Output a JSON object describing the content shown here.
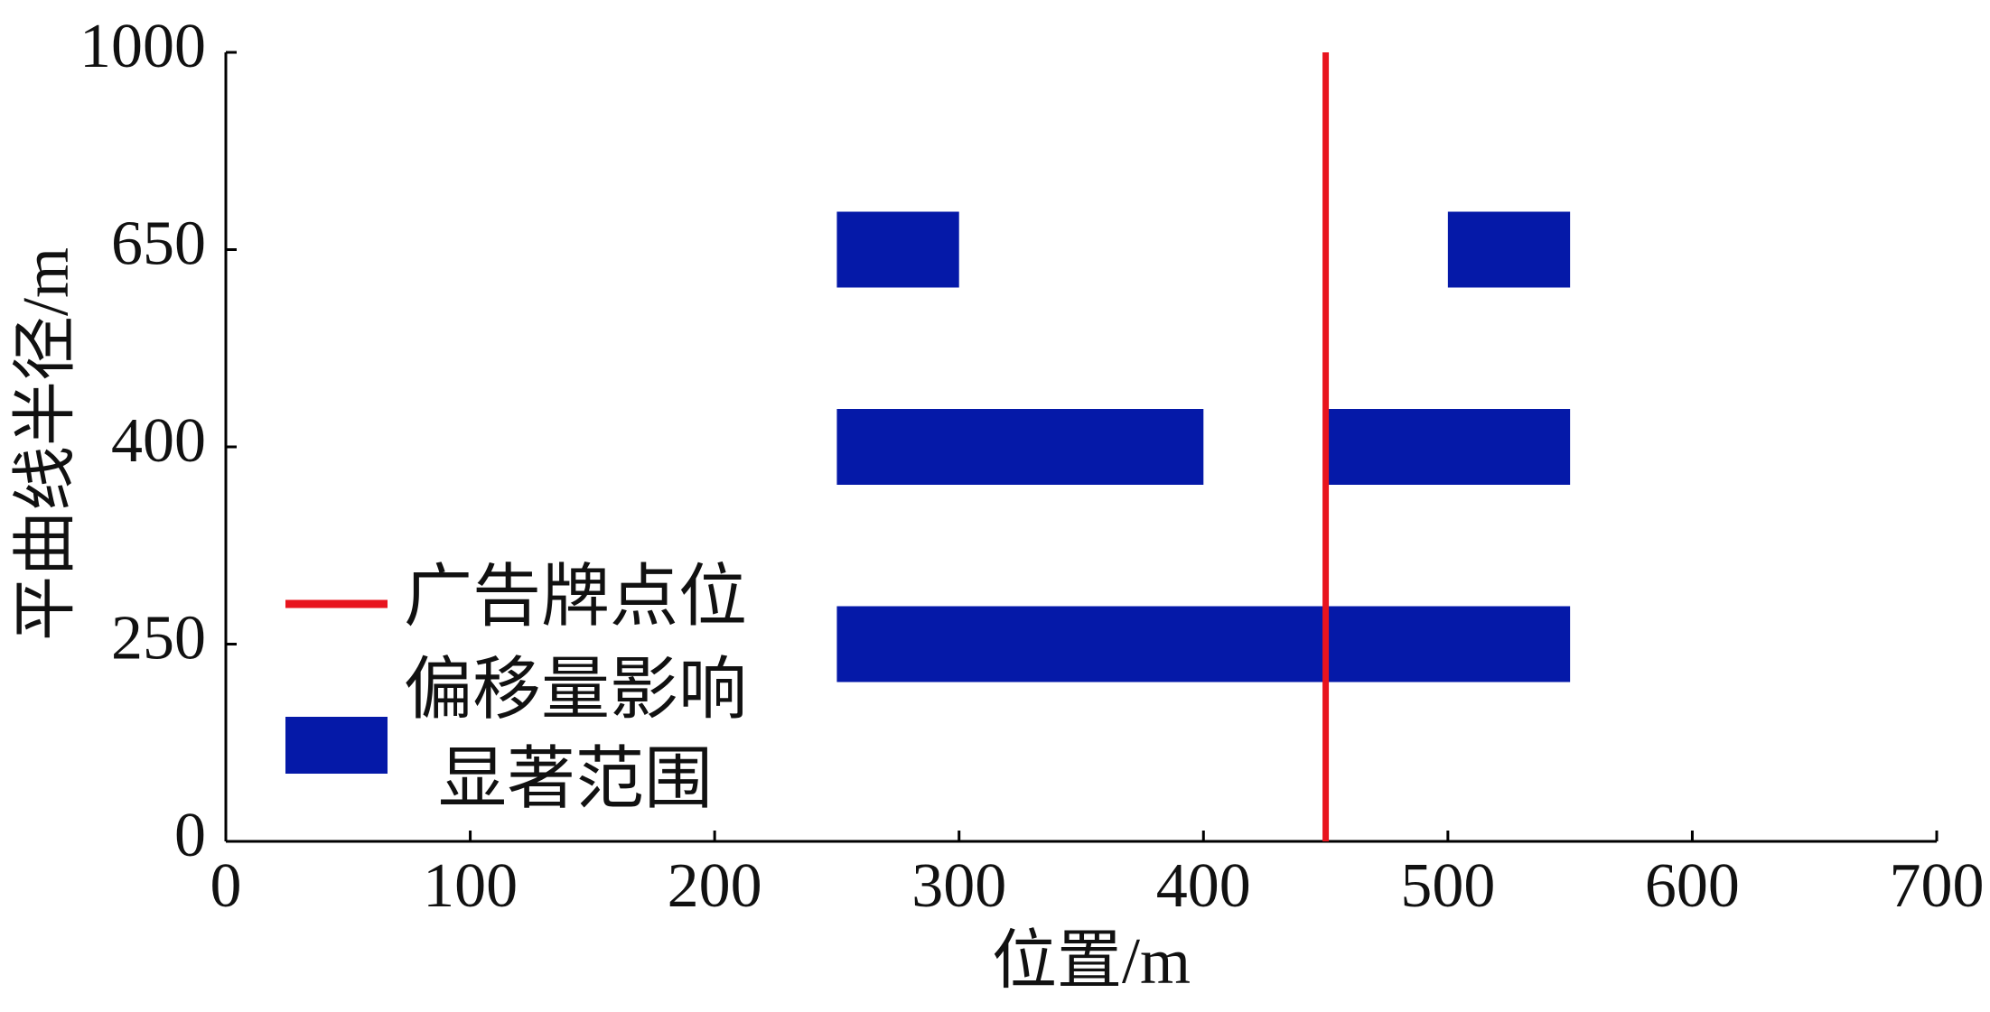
{
  "chart_data": {
    "type": "range-bar",
    "xlabel": "位置/m",
    "ylabel": "平曲线半径/m",
    "xlim": [
      0,
      700
    ],
    "xticks": [
      0,
      100,
      200,
      300,
      400,
      500,
      600,
      700
    ],
    "yticks": [
      0,
      250,
      400,
      650,
      1000
    ],
    "rows": [
      {
        "radius": 250,
        "ranges": [
          [
            250,
            550
          ]
        ]
      },
      {
        "radius": 400,
        "ranges": [
          [
            250,
            400
          ],
          [
            450,
            550
          ]
        ]
      },
      {
        "radius": 650,
        "ranges": [
          [
            250,
            300
          ],
          [
            500,
            550
          ]
        ]
      }
    ],
    "range_name": [
      "偏移量影响",
      "显著范围"
    ],
    "range_color": "#0519a8",
    "marker_name": "广告牌点位",
    "marker_x": 450,
    "marker_color": "#e8141e"
  }
}
